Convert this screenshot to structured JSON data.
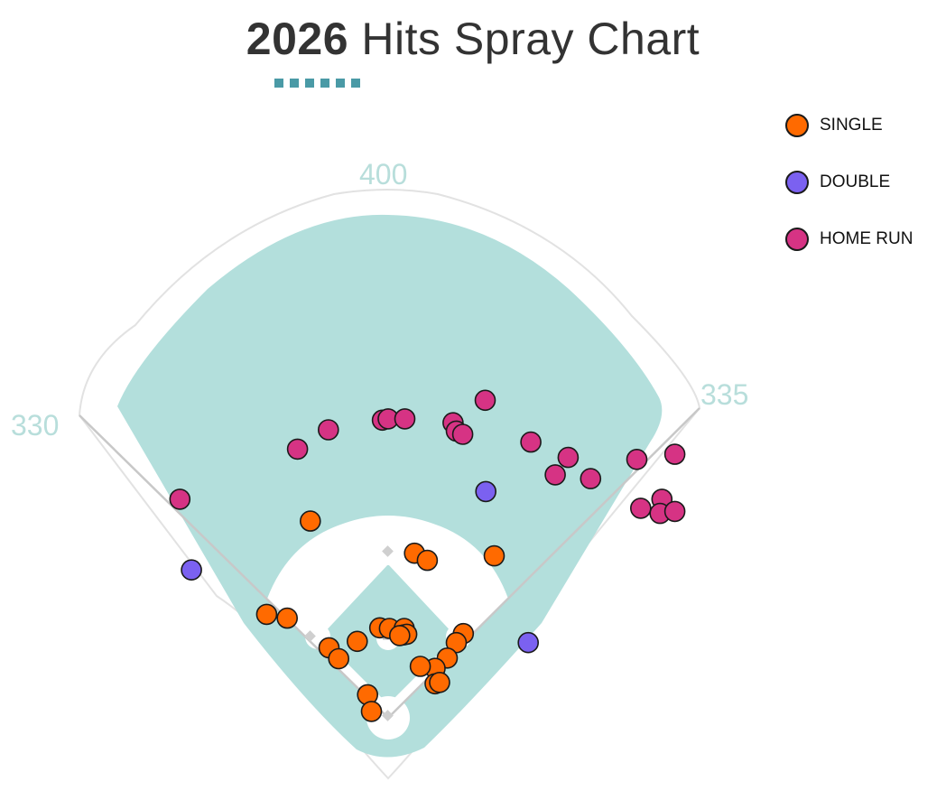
{
  "title": {
    "year": "2026",
    "text": " Hits Spray Chart"
  },
  "colors": {
    "accent": "#4a9aa6",
    "field_grass": "#b3dfdc",
    "distance_text": "#b8dedb",
    "single": "#ff6a00",
    "double": "#7b61f0",
    "home_run": "#d63384"
  },
  "distances": {
    "left": "330",
    "center": "400",
    "right": "335"
  },
  "legend": [
    {
      "label": "SINGLE",
      "type": "single"
    },
    {
      "label": "DOUBLE",
      "type": "double"
    },
    {
      "label": "HOME RUN",
      "type": "home_run"
    }
  ],
  "chart_data": {
    "type": "scatter",
    "title": "2026 Hits Spray Chart",
    "x_unit": "feet from home plate toward right field",
    "y_unit": "feet from home plate toward center field",
    "legend_position": "top-right",
    "series": [
      {
        "name": "SINGLE",
        "points": [
          [
            -121,
            306
          ],
          [
            41,
            256
          ],
          [
            61,
            245
          ],
          [
            165,
            252
          ],
          [
            -189,
            161
          ],
          [
            -157,
            155
          ],
          [
            117,
            131
          ],
          [
            106,
            117
          ],
          [
            -13,
            140
          ],
          [
            2,
            139
          ],
          [
            25,
            139
          ],
          [
            24,
            129
          ],
          [
            29,
            130
          ],
          [
            18,
            128
          ],
          [
            -92,
            109
          ],
          [
            -48,
            119
          ],
          [
            -77,
            92
          ],
          [
            92,
            93
          ],
          [
            73,
            77
          ],
          [
            50,
            80
          ],
          [
            73,
            53
          ],
          [
            80,
            55
          ],
          [
            -32,
            36
          ],
          [
            -26,
            10
          ]
        ]
      },
      {
        "name": "DOUBLE",
        "points": [
          [
            -306,
            230
          ],
          [
            152,
            352
          ],
          [
            218,
            117
          ]
        ]
      },
      {
        "name": "HOME RUN",
        "points": [
          [
            -324,
            340
          ],
          [
            -141,
            418
          ],
          [
            -93,
            448
          ],
          [
            -9,
            463
          ],
          [
            0,
            465
          ],
          [
            26,
            465
          ],
          [
            101,
            459
          ],
          [
            106,
            446
          ],
          [
            116,
            441
          ],
          [
            151,
            494
          ],
          [
            222,
            429
          ],
          [
            260,
            378
          ],
          [
            280,
            405
          ],
          [
            315,
            372
          ],
          [
            387,
            402
          ],
          [
            446,
            410
          ],
          [
            426,
            340
          ],
          [
            393,
            326
          ],
          [
            423,
            318
          ],
          [
            446,
            321
          ]
        ]
      }
    ]
  }
}
